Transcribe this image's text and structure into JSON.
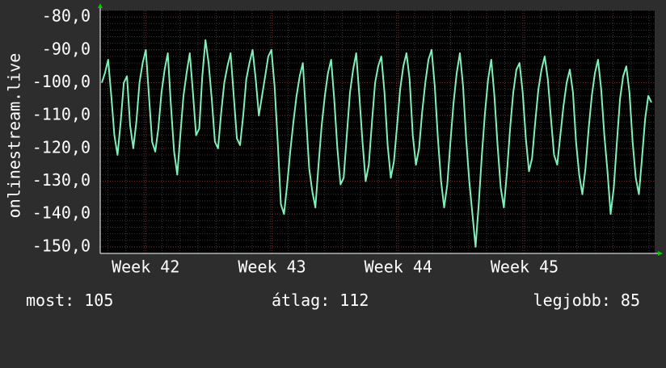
{
  "colors": {
    "background": "#2d2d2d",
    "plot_background": "#000000",
    "grid_minor": "#3a3a3a",
    "grid_major": "#7a2a2a",
    "line": "#7ef0b8",
    "axis_marker": "#00cc00"
  },
  "chart_data": {
    "type": "line",
    "ylabel": "onlinestream.live",
    "ylim": [
      -152,
      -78
    ],
    "y_ticks": [
      "-80,0",
      "-90,0",
      "-100,0",
      "-110,0",
      "-120,0",
      "-130,0",
      "-140,0",
      "-150,0"
    ],
    "y_tick_values": [
      -80,
      -90,
      -100,
      -110,
      -120,
      -130,
      -140,
      -150
    ],
    "x_ticks": [
      "Week 42",
      "Week 43",
      "Week 44",
      "Week 45"
    ],
    "x_tick_positions": [
      1,
      2,
      3,
      4
    ],
    "x_range": [
      0.64,
      5.03
    ],
    "grid": true,
    "series": [
      {
        "values": [
          -100,
          -97,
          -93,
          -104,
          -116,
          -122,
          -112,
          -100,
          -98,
          -113,
          -120,
          -112,
          -100,
          -94,
          -90,
          -104,
          -118,
          -121,
          -114,
          -103,
          -96,
          -91,
          -107,
          -121,
          -128,
          -116,
          -104,
          -97,
          -91,
          -103,
          -116,
          -114,
          -98,
          -87,
          -94,
          -105,
          -118,
          -120,
          -109,
          -100,
          -95,
          -91,
          -104,
          -117,
          -119,
          -110,
          -99,
          -94,
          -90,
          -99,
          -110,
          -104,
          -98,
          -92,
          -90,
          -101,
          -118,
          -137,
          -140,
          -131,
          -121,
          -112,
          -104,
          -98,
          -94,
          -110,
          -126,
          -133,
          -138,
          -125,
          -113,
          -104,
          -97,
          -93,
          -105,
          -120,
          -131,
          -129,
          -116,
          -103,
          -96,
          -91,
          -104,
          -118,
          -130,
          -125,
          -112,
          -100,
          -95,
          -92,
          -103,
          -119,
          -129,
          -124,
          -113,
          -102,
          -95,
          -91,
          -99,
          -116,
          -125,
          -120,
          -109,
          -100,
          -93,
          -90,
          -101,
          -117,
          -130,
          -138,
          -131,
          -118,
          -106,
          -97,
          -91,
          -101,
          -117,
          -130,
          -140,
          -150,
          -137,
          -122,
          -109,
          -99,
          -93,
          -104,
          -119,
          -132,
          -138,
          -127,
          -114,
          -103,
          -96,
          -94,
          -103,
          -117,
          -127,
          -123,
          -112,
          -102,
          -96,
          -92,
          -99,
          -111,
          -122,
          -125,
          -116,
          -107,
          -100,
          -96,
          -103,
          -118,
          -128,
          -134,
          -126,
          -114,
          -104,
          -97,
          -93,
          -102,
          -116,
          -127,
          -140,
          -132,
          -118,
          -105,
          -98,
          -95,
          -103,
          -118,
          -129,
          -134,
          -123,
          -111,
          -104,
          -106
        ]
      }
    ]
  },
  "stats": {
    "now": "most: 105",
    "avg": "átlag: 112",
    "best": "legjobb: 85"
  }
}
